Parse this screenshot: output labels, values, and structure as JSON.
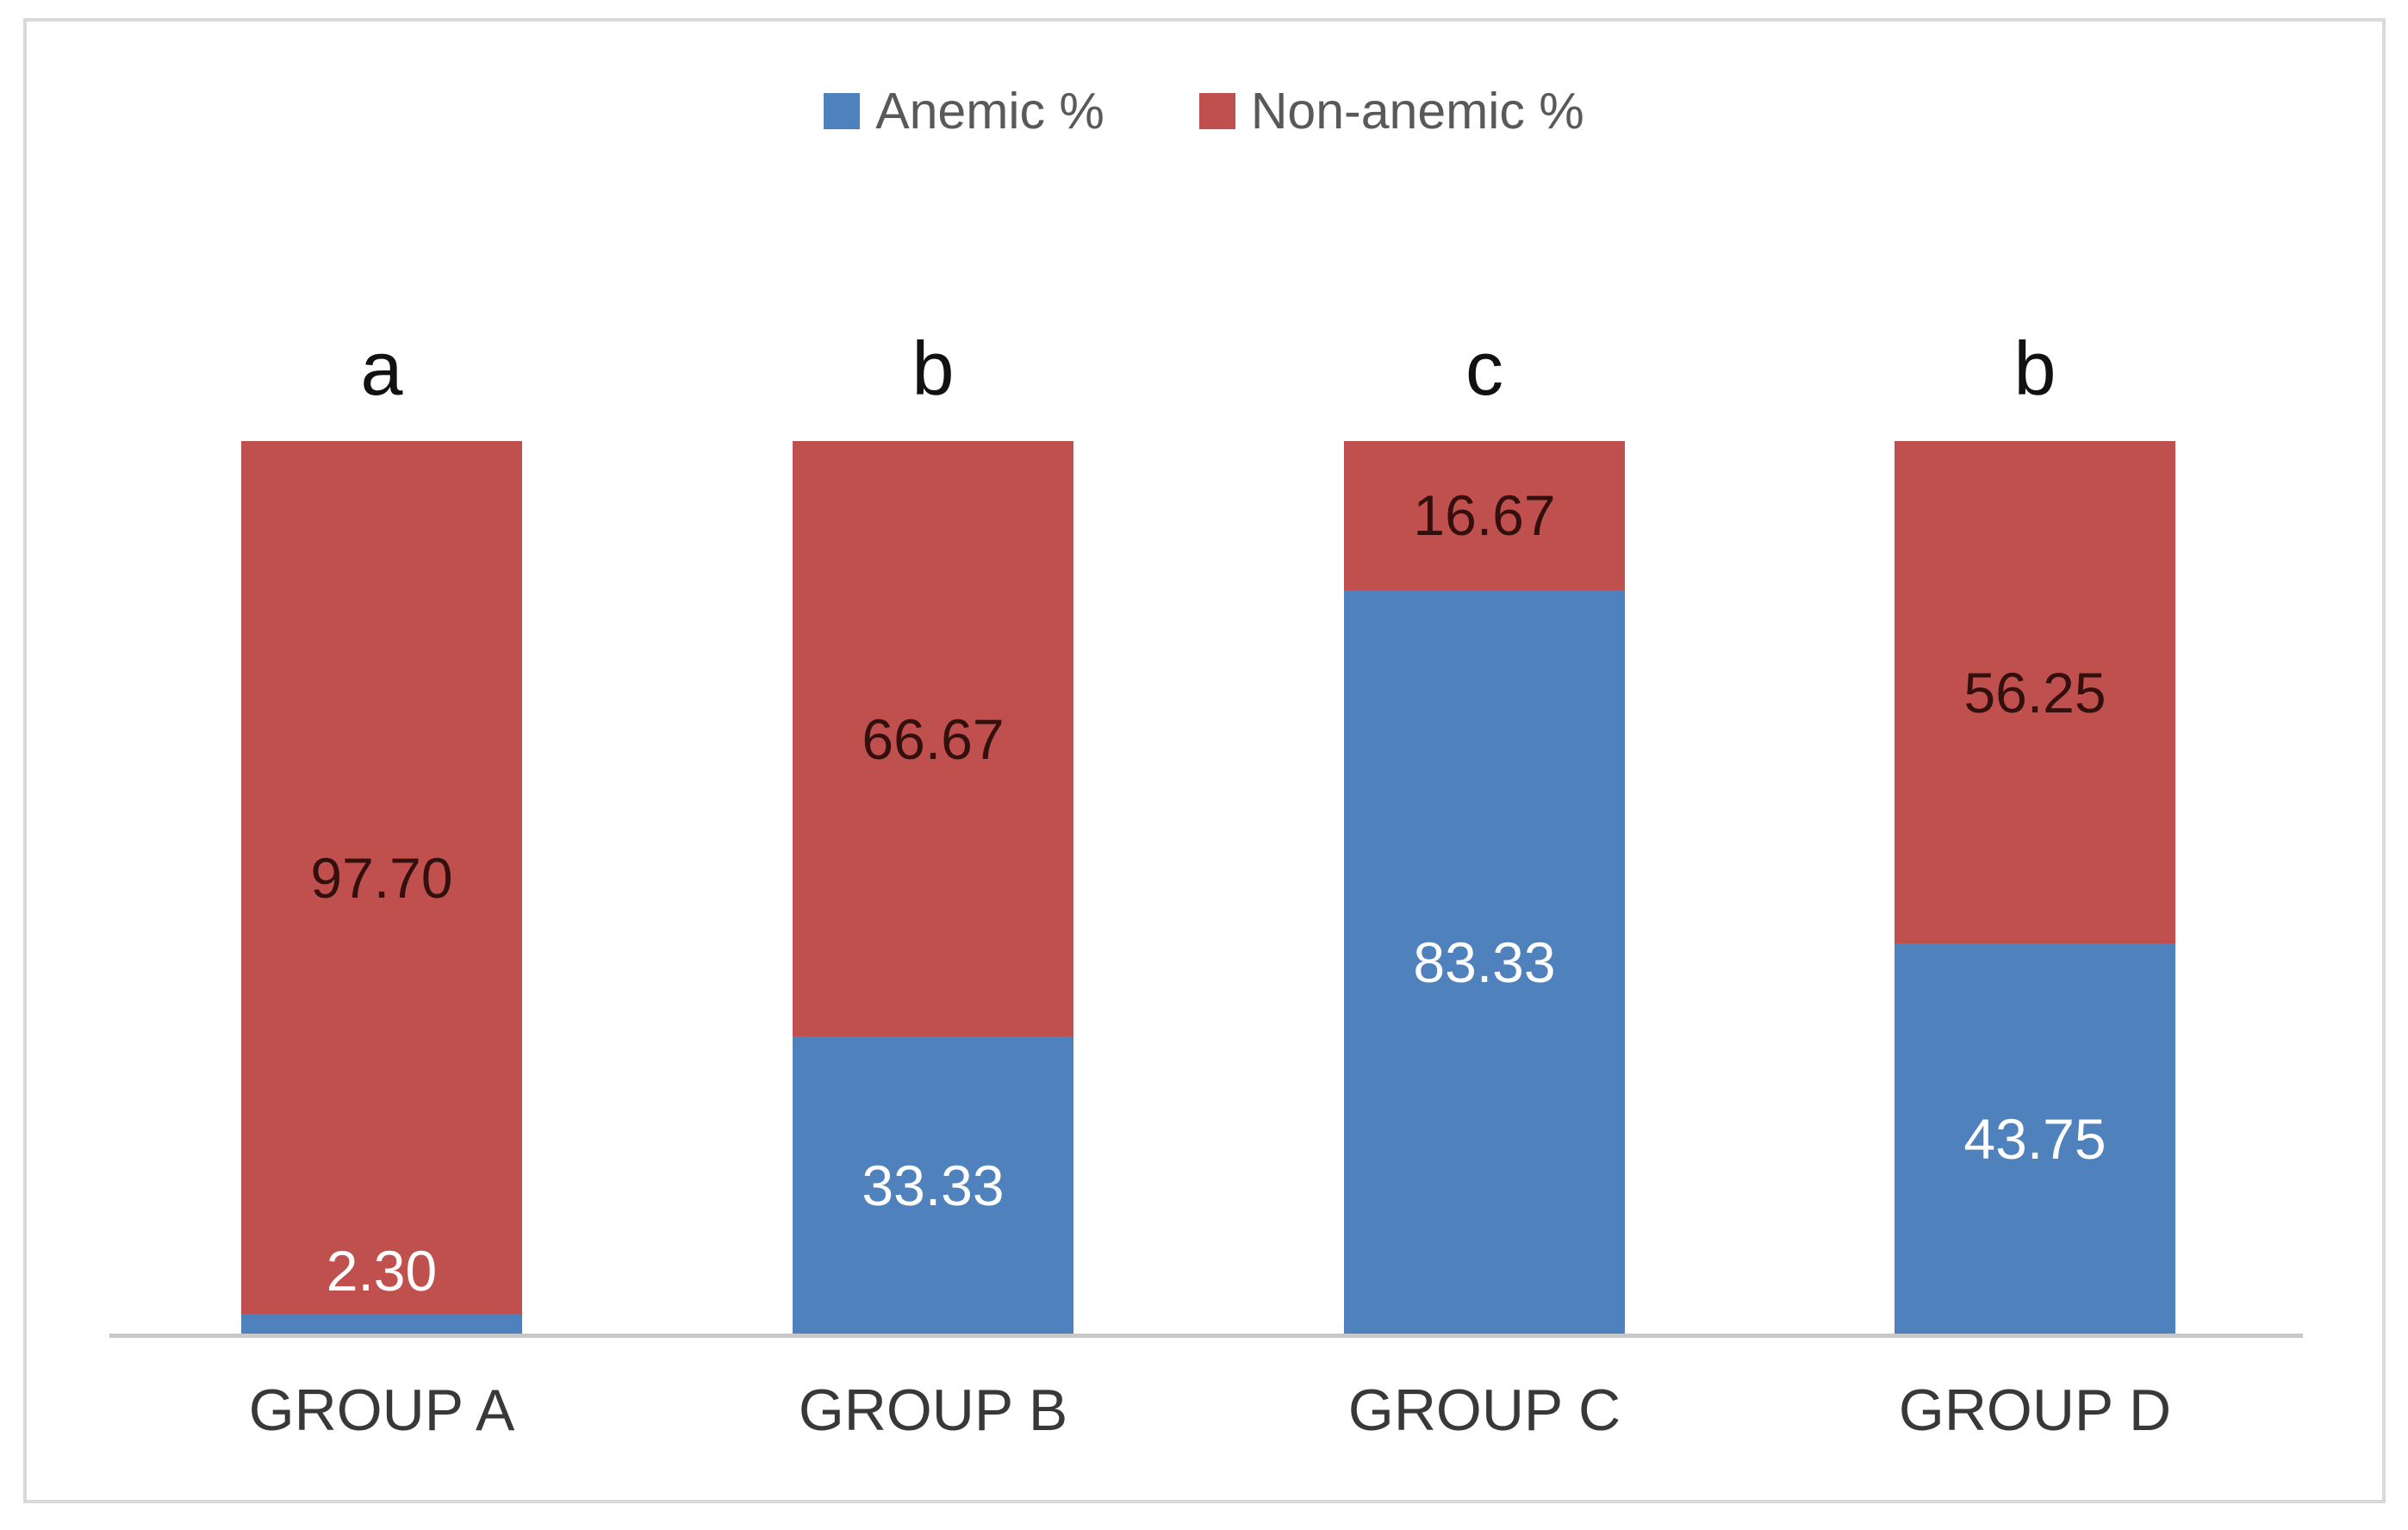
{
  "chart_data": {
    "type": "bar",
    "subtype": "stacked-100-percent-column",
    "categories": [
      "GROUP A",
      "GROUP B",
      "GROUP C",
      "GROUP D"
    ],
    "series": [
      {
        "name": "Anemic %",
        "color": "#4F81BD",
        "values": [
          2.3,
          33.33,
          83.33,
          43.75
        ],
        "labels": [
          "2.30",
          "33.33",
          "83.33",
          "43.75"
        ],
        "label_text_color": "#FFFFFF"
      },
      {
        "name": "Non-anemic %",
        "color": "#C0504D",
        "values": [
          97.7,
          66.67,
          16.67,
          56.25
        ],
        "labels": [
          "97.70",
          "66.67",
          "16.67",
          "56.25"
        ],
        "label_text_color": "#330F0D"
      }
    ],
    "significance_letters": [
      "a",
      "b",
      "c",
      "b"
    ],
    "legend_position": "top",
    "ylim": [
      0,
      100
    ],
    "grid": false,
    "axis_baseline_color": "#C8C8C8",
    "frame_border_color": "#D9D9D9",
    "background_color": "#FFFFFF"
  }
}
